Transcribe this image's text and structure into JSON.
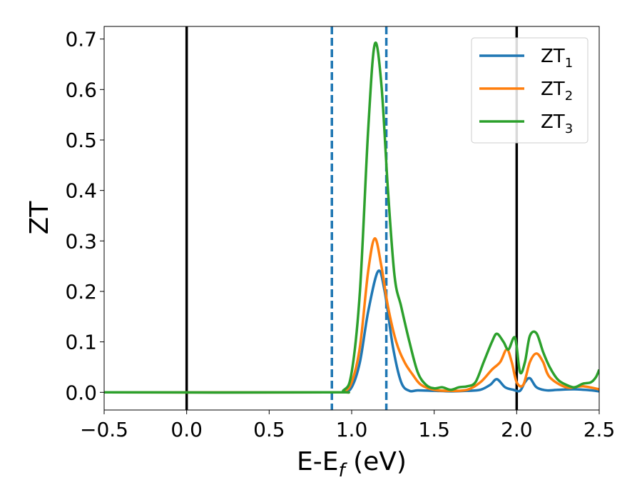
{
  "chart_data": {
    "type": "line",
    "xlabel": "E-E",
    "xlabel_sub": "f",
    "xlabel_unit": " (eV)",
    "ylabel": "ZT",
    "xlim": [
      -0.5,
      2.5
    ],
    "ylim": [
      -0.035,
      0.725
    ],
    "x_ticks": [
      -0.5,
      0.0,
      0.5,
      1.0,
      1.5,
      2.0,
      2.5
    ],
    "x_tick_labels": [
      "−0.5",
      "0.0",
      "0.5",
      "1.0",
      "1.5",
      "2.0",
      "2.5"
    ],
    "y_ticks": [
      0.0,
      0.1,
      0.2,
      0.3,
      0.4,
      0.5,
      0.6,
      0.7
    ],
    "y_tick_labels": [
      "0.0",
      "0.1",
      "0.2",
      "0.3",
      "0.4",
      "0.5",
      "0.6",
      "0.7"
    ],
    "grid": false,
    "legend_position": "top-right",
    "vlines": [
      {
        "x": 0.0,
        "style": "solid",
        "color": "#000000"
      },
      {
        "x": 2.0,
        "style": "solid",
        "color": "#000000"
      },
      {
        "x": 0.88,
        "style": "dashed",
        "color": "#1f77b4"
      },
      {
        "x": 1.21,
        "style": "dashed",
        "color": "#1f77b4"
      }
    ],
    "series": [
      {
        "name": "ZT",
        "name_sub": "1",
        "color": "#1f77b4",
        "points": [
          [
            -0.5,
            0
          ],
          [
            0.85,
            0
          ],
          [
            0.95,
            0.001
          ],
          [
            1.0,
            0.01
          ],
          [
            1.05,
            0.06
          ],
          [
            1.1,
            0.16
          ],
          [
            1.16,
            0.24
          ],
          [
            1.2,
            0.2
          ],
          [
            1.25,
            0.09
          ],
          [
            1.3,
            0.02
          ],
          [
            1.35,
            0.003
          ],
          [
            1.4,
            0.004
          ],
          [
            1.5,
            0.003
          ],
          [
            1.6,
            0.002
          ],
          [
            1.7,
            0.003
          ],
          [
            1.78,
            0.005
          ],
          [
            1.84,
            0.015
          ],
          [
            1.88,
            0.026
          ],
          [
            1.93,
            0.01
          ],
          [
            1.98,
            0.005
          ],
          [
            2.02,
            0.003
          ],
          [
            2.05,
            0.02
          ],
          [
            2.08,
            0.028
          ],
          [
            2.12,
            0.01
          ],
          [
            2.18,
            0.004
          ],
          [
            2.25,
            0.005
          ],
          [
            2.35,
            0.006
          ],
          [
            2.45,
            0.004
          ],
          [
            2.5,
            0.002
          ]
        ]
      },
      {
        "name": "ZT",
        "name_sub": "2",
        "color": "#ff7f0e",
        "points": [
          [
            -0.5,
            0
          ],
          [
            0.85,
            0
          ],
          [
            0.95,
            0.002
          ],
          [
            1.0,
            0.02
          ],
          [
            1.05,
            0.09
          ],
          [
            1.1,
            0.24
          ],
          [
            1.14,
            0.305
          ],
          [
            1.18,
            0.25
          ],
          [
            1.22,
            0.17
          ],
          [
            1.27,
            0.1
          ],
          [
            1.32,
            0.06
          ],
          [
            1.37,
            0.035
          ],
          [
            1.42,
            0.015
          ],
          [
            1.5,
            0.005
          ],
          [
            1.6,
            0.003
          ],
          [
            1.7,
            0.005
          ],
          [
            1.78,
            0.02
          ],
          [
            1.85,
            0.045
          ],
          [
            1.9,
            0.06
          ],
          [
            1.94,
            0.085
          ],
          [
            1.97,
            0.06
          ],
          [
            2.0,
            0.02
          ],
          [
            2.04,
            0.015
          ],
          [
            2.08,
            0.06
          ],
          [
            2.12,
            0.077
          ],
          [
            2.16,
            0.06
          ],
          [
            2.2,
            0.03
          ],
          [
            2.3,
            0.01
          ],
          [
            2.4,
            0.012
          ],
          [
            2.5,
            0.006
          ]
        ]
      },
      {
        "name": "ZT",
        "name_sub": "3",
        "color": "#2ca02c",
        "points": [
          [
            -0.5,
            0
          ],
          [
            0.85,
            0
          ],
          [
            0.95,
            0.004
          ],
          [
            1.0,
            0.04
          ],
          [
            1.05,
            0.2
          ],
          [
            1.1,
            0.52
          ],
          [
            1.14,
            0.69
          ],
          [
            1.18,
            0.61
          ],
          [
            1.22,
            0.4
          ],
          [
            1.26,
            0.23
          ],
          [
            1.3,
            0.17
          ],
          [
            1.35,
            0.1
          ],
          [
            1.4,
            0.04
          ],
          [
            1.45,
            0.015
          ],
          [
            1.5,
            0.008
          ],
          [
            1.55,
            0.01
          ],
          [
            1.6,
            0.005
          ],
          [
            1.65,
            0.01
          ],
          [
            1.7,
            0.012
          ],
          [
            1.75,
            0.02
          ],
          [
            1.8,
            0.06
          ],
          [
            1.85,
            0.1
          ],
          [
            1.88,
            0.116
          ],
          [
            1.92,
            0.1
          ],
          [
            1.95,
            0.085
          ],
          [
            1.99,
            0.108
          ],
          [
            2.02,
            0.04
          ],
          [
            2.05,
            0.06
          ],
          [
            2.08,
            0.112
          ],
          [
            2.12,
            0.117
          ],
          [
            2.16,
            0.08
          ],
          [
            2.2,
            0.05
          ],
          [
            2.25,
            0.025
          ],
          [
            2.3,
            0.015
          ],
          [
            2.35,
            0.01
          ],
          [
            2.4,
            0.017
          ],
          [
            2.45,
            0.02
          ],
          [
            2.48,
            0.03
          ],
          [
            2.5,
            0.045
          ]
        ]
      }
    ]
  }
}
